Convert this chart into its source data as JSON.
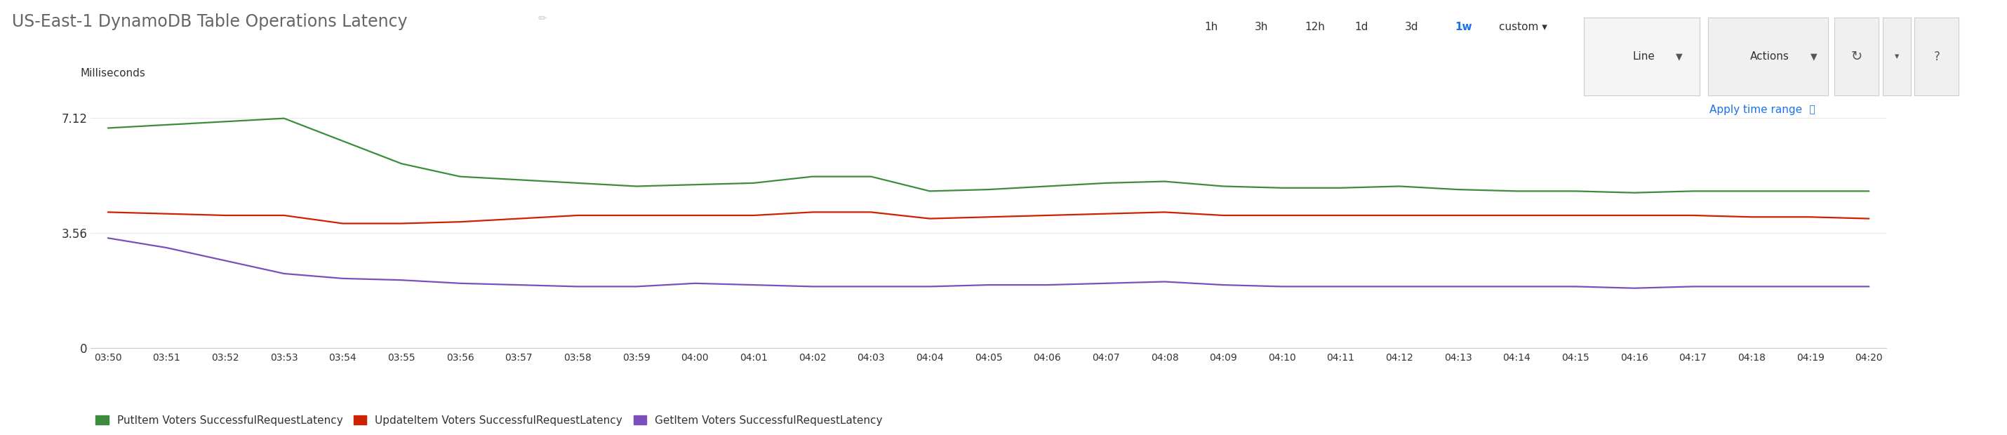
{
  "title": "US-East-1 DynamoDB Table Operations Latency",
  "ylabel": "Milliseconds",
  "ylim": [
    0,
    7.8
  ],
  "yticks": [
    0,
    3.56,
    7.12
  ],
  "background_color": "#ffffff",
  "plot_bg_color": "#ffffff",
  "grid_color": "#e8e8e8",
  "time_labels": [
    "03:50",
    "03:51",
    "03:52",
    "03:53",
    "03:54",
    "03:55",
    "03:56",
    "03:57",
    "03:58",
    "03:59",
    "04:00",
    "04:01",
    "04:02",
    "04:03",
    "04:04",
    "04:05",
    "04:06",
    "04:07",
    "04:08",
    "04:09",
    "04:10",
    "04:11",
    "04:12",
    "04:13",
    "04:14",
    "04:15",
    "04:16",
    "04:17",
    "04:18",
    "04:19",
    "04:20"
  ],
  "series": [
    {
      "label": "PutItem Voters SuccessfulRequestLatency",
      "color": "#3d8c3d",
      "data": [
        6.8,
        6.9,
        7.0,
        7.1,
        6.4,
        5.7,
        5.3,
        5.2,
        5.1,
        5.0,
        5.05,
        5.1,
        5.3,
        5.3,
        4.85,
        4.9,
        5.0,
        5.1,
        5.15,
        5.0,
        4.95,
        4.95,
        5.0,
        4.9,
        4.85,
        4.85,
        4.8,
        4.85,
        4.85,
        4.85,
        4.85
      ]
    },
    {
      "label": "UpdateItem Voters SuccessfulRequestLatency",
      "color": "#cc2200",
      "data": [
        4.2,
        4.15,
        4.1,
        4.1,
        3.85,
        3.85,
        3.9,
        4.0,
        4.1,
        4.1,
        4.1,
        4.1,
        4.2,
        4.2,
        4.0,
        4.05,
        4.1,
        4.15,
        4.2,
        4.1,
        4.1,
        4.1,
        4.1,
        4.1,
        4.1,
        4.1,
        4.1,
        4.1,
        4.05,
        4.05,
        4.0
      ]
    },
    {
      "label": "GetItem Voters SuccessfulRequestLatency",
      "color": "#7b4fbb",
      "data": [
        3.4,
        3.1,
        2.7,
        2.3,
        2.15,
        2.1,
        2.0,
        1.95,
        1.9,
        1.9,
        2.0,
        1.95,
        1.9,
        1.9,
        1.9,
        1.95,
        1.95,
        2.0,
        2.05,
        1.95,
        1.9,
        1.9,
        1.9,
        1.9,
        1.9,
        1.9,
        1.85,
        1.9,
        1.9,
        1.9,
        1.9
      ]
    }
  ],
  "title_color": "#666666",
  "tick_color": "#333333",
  "time_range_labels": [
    "1h",
    "3h",
    "12h",
    "1d",
    "3d"
  ],
  "time_range_bold": "1w",
  "time_range_custom": "custom",
  "apply_text": "Apply time range",
  "apply_color": "#1a73e8",
  "line_btn": "Line",
  "actions_btn": "Actions"
}
